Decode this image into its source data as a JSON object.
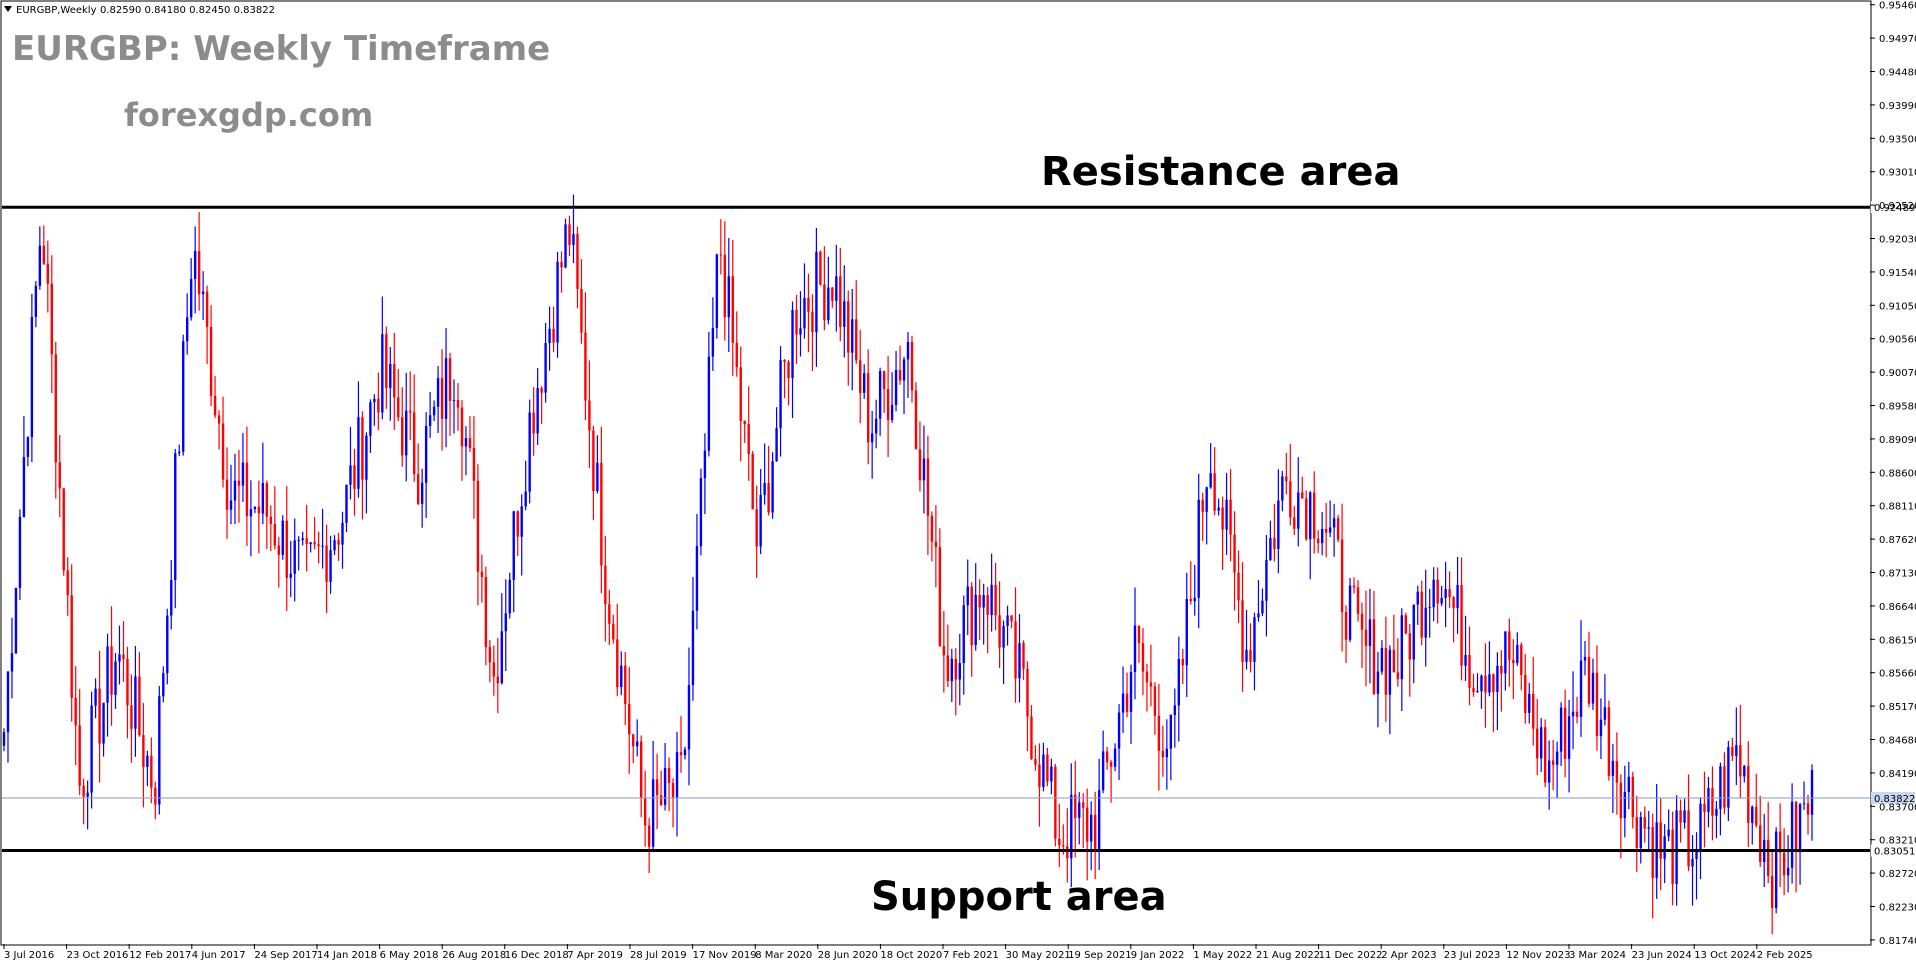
{
  "window": {
    "symbol_header": "EURGBP,Weekly",
    "ohlc_header": "0.82590 0.84180 0.82450 0.83822",
    "menu_icon": "triangle-down-icon"
  },
  "annotations": {
    "title": "EURGBP: Weekly Timeframe",
    "website": "forexgdp.com",
    "resistance_label": "Resistance area",
    "support_label": "Support area"
  },
  "colors": {
    "bull": "#0000ff",
    "bear": "#ff0000",
    "level_line": "#000000",
    "bid_line": "#7f9fc0",
    "annotation_gray": "#8c8c8c"
  },
  "chart_data": {
    "type": "candlestick",
    "symbol": "EURGBP",
    "timeframe": "Weekly",
    "ylim": [
      0.8168,
      0.955
    ],
    "y_ticks": [
      "0.95460",
      "0.94970",
      "0.94480",
      "0.93990",
      "0.93500",
      "0.93010",
      "0.92520",
      "0.92030",
      "0.91540",
      "0.91050",
      "0.90560",
      "0.90070",
      "0.89580",
      "0.89090",
      "0.88600",
      "0.88110",
      "0.87620",
      "0.87130",
      "0.86640",
      "0.86150",
      "0.85660",
      "0.85170",
      "0.84680",
      "0.84190",
      "0.83700",
      "0.83210",
      "0.82720",
      "0.82230",
      "0.81740"
    ],
    "x_ticks": [
      "3 Jul 2016",
      "23 Oct 2016",
      "12 Feb 2017",
      "4 Jun 2017",
      "24 Sep 2017",
      "14 Jan 2018",
      "6 May 2018",
      "26 Aug 2018",
      "16 Dec 2018",
      "7 Apr 2019",
      "28 Jul 2019",
      "17 Nov 2019",
      "8 Mar 2020",
      "28 Jun 2020",
      "18 Oct 2020",
      "7 Feb 2021",
      "30 May 2021",
      "19 Sep 2021",
      "9 Jan 2022",
      "1 May 2022",
      "21 Aug 2022",
      "11 Dec 2022",
      "2 Apr 2023",
      "23 Jul 2023",
      "12 Nov 2023",
      "3 Mar 2024",
      "23 Jun 2024",
      "13 Oct 2024",
      "2 Feb 2025"
    ],
    "levels": {
      "resistance": {
        "value": 0.92489,
        "label": "0.92489"
      },
      "support": {
        "value": 0.83051,
        "label": "0.83051"
      },
      "current": {
        "value": 0.83822,
        "label": "0.83822"
      }
    },
    "key_points": [
      {
        "date": "3 Jul 2016",
        "close": 0.848
      },
      {
        "date": "Oct 2016",
        "close": 0.924
      },
      {
        "date": "Dec 2016",
        "close": 0.84
      },
      {
        "date": "Feb 2017",
        "close": 0.86
      },
      {
        "date": "Apr 2017",
        "close": 0.84
      },
      {
        "date": "Aug 2017",
        "close": 0.92
      },
      {
        "date": "Oct 2017",
        "close": 0.883
      },
      {
        "date": "Jan 2018",
        "close": 0.88
      },
      {
        "date": "Mar 2018",
        "close": 0.87
      },
      {
        "date": "Jun 2018",
        "close": 0.88
      },
      {
        "date": "Aug 2018",
        "close": 0.901
      },
      {
        "date": "Nov 2018",
        "close": 0.887
      },
      {
        "date": "Dec 2018",
        "close": 0.903
      },
      {
        "date": "Mar 2019",
        "close": 0.856
      },
      {
        "date": "Jun 2019",
        "close": 0.895
      },
      {
        "date": "Aug 2019",
        "close": 0.922
      },
      {
        "date": "Oct 2019",
        "close": 0.87
      },
      {
        "date": "Dec 2019",
        "close": 0.835
      },
      {
        "date": "Feb 2020",
        "close": 0.84
      },
      {
        "date": "Mar 2020",
        "close": 0.92
      },
      {
        "date": "Apr 2020",
        "close": 0.875
      },
      {
        "date": "Jun 2020",
        "close": 0.91
      },
      {
        "date": "Sep 2020",
        "close": 0.915
      },
      {
        "date": "Nov 2020",
        "close": 0.893
      },
      {
        "date": "Jan 2021",
        "close": 0.905
      },
      {
        "date": "Mar 2021",
        "close": 0.858
      },
      {
        "date": "Apr 2021",
        "close": 0.87
      },
      {
        "date": "Sep 2021",
        "close": 0.855
      },
      {
        "date": "Jan 2022",
        "close": 0.833
      },
      {
        "date": "Mar 2022",
        "close": 0.835
      },
      {
        "date": "Jun 2022",
        "close": 0.86
      },
      {
        "date": "Aug 2022",
        "close": 0.845
      },
      {
        "date": "Sep 2022",
        "close": 0.89
      },
      {
        "date": "Nov 2022",
        "close": 0.86
      },
      {
        "date": "Jan 2023",
        "close": 0.885
      },
      {
        "date": "Mar 2023",
        "close": 0.88
      },
      {
        "date": "May 2023",
        "close": 0.86
      },
      {
        "date": "Aug 2023",
        "close": 0.858
      },
      {
        "date": "Oct 2023",
        "close": 0.873
      },
      {
        "date": "Jan 2024",
        "close": 0.858
      },
      {
        "date": "Apr 2024",
        "close": 0.859
      },
      {
        "date": "Jun 2024",
        "close": 0.842
      },
      {
        "date": "Jul 2024",
        "close": 0.857
      },
      {
        "date": "Sep 2024",
        "close": 0.84
      },
      {
        "date": "Nov 2024",
        "close": 0.83
      },
      {
        "date": "Dec 2024",
        "close": 0.832
      },
      {
        "date": "Jan 2025",
        "close": 0.845
      },
      {
        "date": "Feb 2025",
        "close": 0.827
      },
      {
        "date": "Mar 2025",
        "close": 0.8382
      }
    ]
  }
}
